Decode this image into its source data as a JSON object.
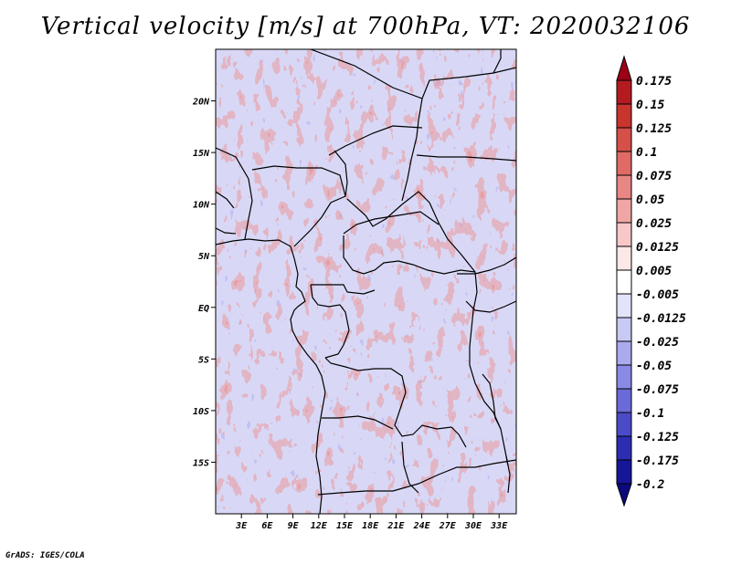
{
  "title": "Vertical velocity [m/s] at 700hPa, VT: 2020032106",
  "credit": "GrADS: IGES/COLA",
  "variable": "Vertical velocity",
  "units": "m/s",
  "level": "700hPa",
  "valid_time": "2020032106",
  "map": {
    "lon_range": [
      0,
      35
    ],
    "lat_range": [
      -20,
      25
    ],
    "x_ticks": [
      {
        "value": 3,
        "label": "3E"
      },
      {
        "value": 6,
        "label": "6E"
      },
      {
        "value": 9,
        "label": "9E"
      },
      {
        "value": 12,
        "label": "12E"
      },
      {
        "value": 15,
        "label": "15E"
      },
      {
        "value": 18,
        "label": "18E"
      },
      {
        "value": 21,
        "label": "21E"
      },
      {
        "value": 24,
        "label": "24E"
      },
      {
        "value": 27,
        "label": "27E"
      },
      {
        "value": 30,
        "label": "30E"
      },
      {
        "value": 33,
        "label": "33E"
      }
    ],
    "y_ticks": [
      {
        "value": 20,
        "label": "20N"
      },
      {
        "value": 15,
        "label": "15N"
      },
      {
        "value": 10,
        "label": "10N"
      },
      {
        "value": 5,
        "label": "5N"
      },
      {
        "value": 0,
        "label": "EQ"
      },
      {
        "value": -5,
        "label": "5S"
      },
      {
        "value": -10,
        "label": "10S"
      },
      {
        "value": -15,
        "label": "15S"
      }
    ]
  },
  "colorbar": {
    "labels": [
      "0.175",
      "0.15",
      "0.125",
      "0.1",
      "0.075",
      "0.05",
      "0.025",
      "0.0125",
      "0.005",
      "-0.005",
      "-0.0125",
      "-0.025",
      "-0.05",
      "-0.075",
      "-0.1",
      "-0.125",
      "-0.175",
      "-0.2"
    ],
    "colors": [
      "#9e0016",
      "#b41b20",
      "#c8342e",
      "#d6504a",
      "#e06a66",
      "#e88683",
      "#f0a6a4",
      "#f7c8c7",
      "#fde8e8",
      "#ffffff",
      "#e3e3fb",
      "#c9c9f5",
      "#aaaaee",
      "#8a8ae6",
      "#6a6ad9",
      "#4b4bc8",
      "#2d2db2",
      "#161698",
      "#0a0a7e"
    ]
  }
}
